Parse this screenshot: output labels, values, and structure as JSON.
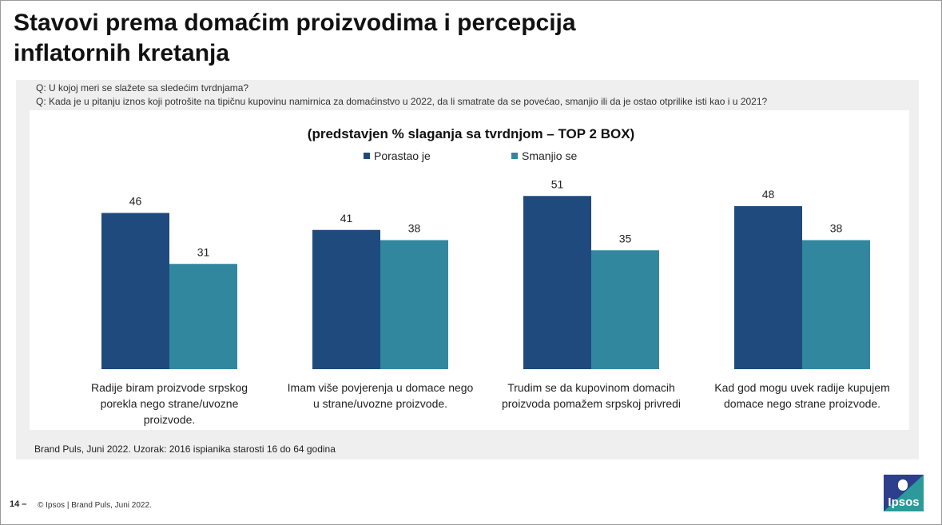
{
  "slide": {
    "title_line1": "Stavovi prema domaćim proizvodima i percepcija",
    "title_line2": "inflatornih kretanja",
    "question1": "Q: U kojoj meri se slažete sa sledećim tvrdnjama?",
    "question2": "Q: Kada je u pitanju iznos koji potrošite na tipičnu kupovinu namirnica za domaćinstvo u 2022, da li smatrate da se povećao, smanjio ili da je ostao otprilike isti kao i u 2021?",
    "source": "Brand Puls, Juni 2022. Uzorak: 2016 ispianika starosti 16 do 64 godina",
    "page_number": "14 –",
    "copyright": "© Ipsos | Brand Puls, Juni 2022.",
    "logo_text": "Ipsos"
  },
  "chart_data": {
    "type": "bar",
    "title": "(predstavjen % slaganja sa tvrdnjom – TOP 2 BOX)",
    "categories": [
      "Radije biram proizvode srpskog porekla nego strane/uvozne proizvode.",
      "Imam više povjerenja u domace nego u strane/uvozne proizvode.",
      "Trudim se da kupovinom domacih proizvoda pomažem srpskoj privredi",
      "Kad god mogu uvek radije kupujem domace nego strane proizvode."
    ],
    "category_lines": [
      [
        "Radije biram proizvode srpskog",
        "porekla nego strane/uvozne",
        "proizvode."
      ],
      [
        "Imam više povjerenja u domace nego",
        "u strane/uvozne proizvode."
      ],
      [
        "Trudim se da kupovinom domacih",
        "proizvoda pomažem srpskoj privredi"
      ],
      [
        "Kad god mogu uvek radije kupujem",
        "domace nego strane proizvode."
      ]
    ],
    "series": [
      {
        "name": "Porastao je",
        "values": [
          46,
          41,
          51,
          48
        ],
        "color": "#1f4a7e"
      },
      {
        "name": "Smanjio se",
        "values": [
          31,
          38,
          35,
          38
        ],
        "color": "#31889e"
      }
    ],
    "ylim": [
      0,
      60
    ],
    "legend_position": "top-center",
    "grid": false
  }
}
